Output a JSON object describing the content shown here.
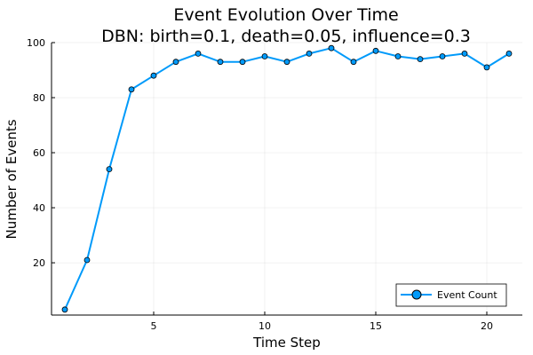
{
  "chart_data": {
    "type": "line",
    "title": "Event Evolution Over Time",
    "subtitle": "DBN: birth=0.1, death=0.05, influence=0.3",
    "xlabel": "Time Step",
    "ylabel": "Number of Events",
    "xlim": [
      0.4,
      21.6
    ],
    "ylim": [
      1,
      100
    ],
    "xticks": [
      5,
      10,
      15,
      20
    ],
    "yticks": [
      20,
      40,
      60,
      80,
      100
    ],
    "grid": true,
    "legend_position": "bottom-right",
    "series": [
      {
        "name": "Event Count",
        "color": "#009AFA",
        "marker": "circle",
        "x": [
          1,
          2,
          3,
          4,
          5,
          6,
          7,
          8,
          9,
          10,
          11,
          12,
          13,
          14,
          15,
          16,
          17,
          18,
          19,
          20,
          21
        ],
        "y": [
          3,
          21,
          54,
          83,
          88,
          93,
          96,
          93,
          93,
          95,
          93,
          96,
          98,
          93,
          97,
          95,
          94,
          95,
          96,
          91,
          96
        ]
      }
    ]
  }
}
